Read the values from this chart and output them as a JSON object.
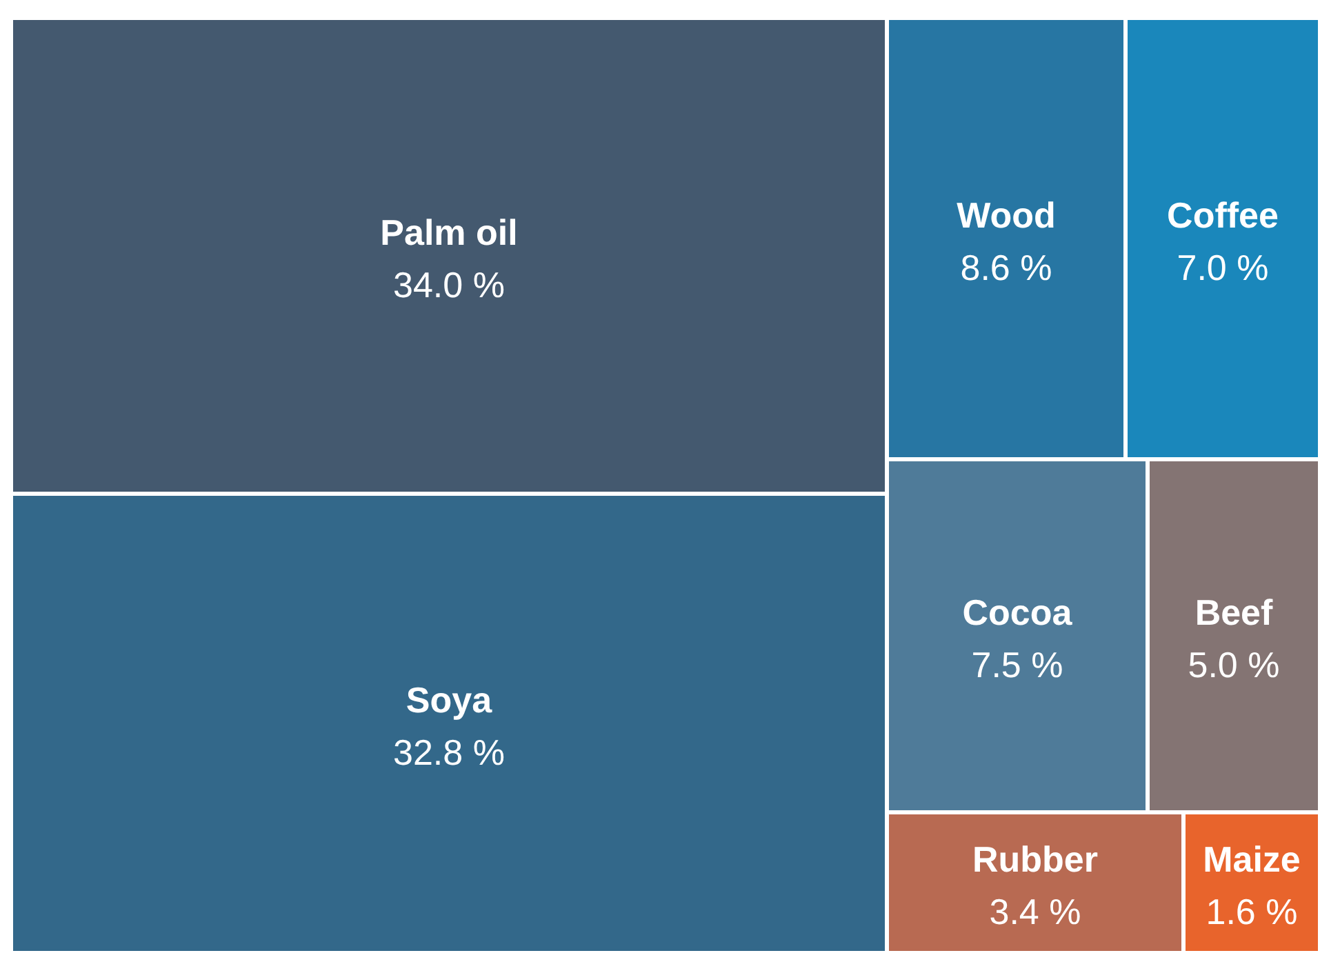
{
  "chart_data": {
    "type": "other",
    "categories": [
      "Palm oil",
      "Soya",
      "Wood",
      "Coffee",
      "Cocoa",
      "Beef",
      "Rubber",
      "Maize"
    ],
    "values": [
      34.0,
      32.8,
      8.6,
      7.0,
      7.5,
      5.0,
      3.4,
      1.6
    ],
    "value_labels": [
      "34.0 %",
      "32.8 %",
      "8.6 %",
      "7.0 %",
      "7.5 %",
      "5.0 %",
      "3.4 %",
      "1.6 %"
    ],
    "colors": [
      "#44596f",
      "#33688a",
      "#2776a3",
      "#1a87bb",
      "#4f7b99",
      "#847473",
      "#b86a52",
      "#e8642c"
    ]
  }
}
